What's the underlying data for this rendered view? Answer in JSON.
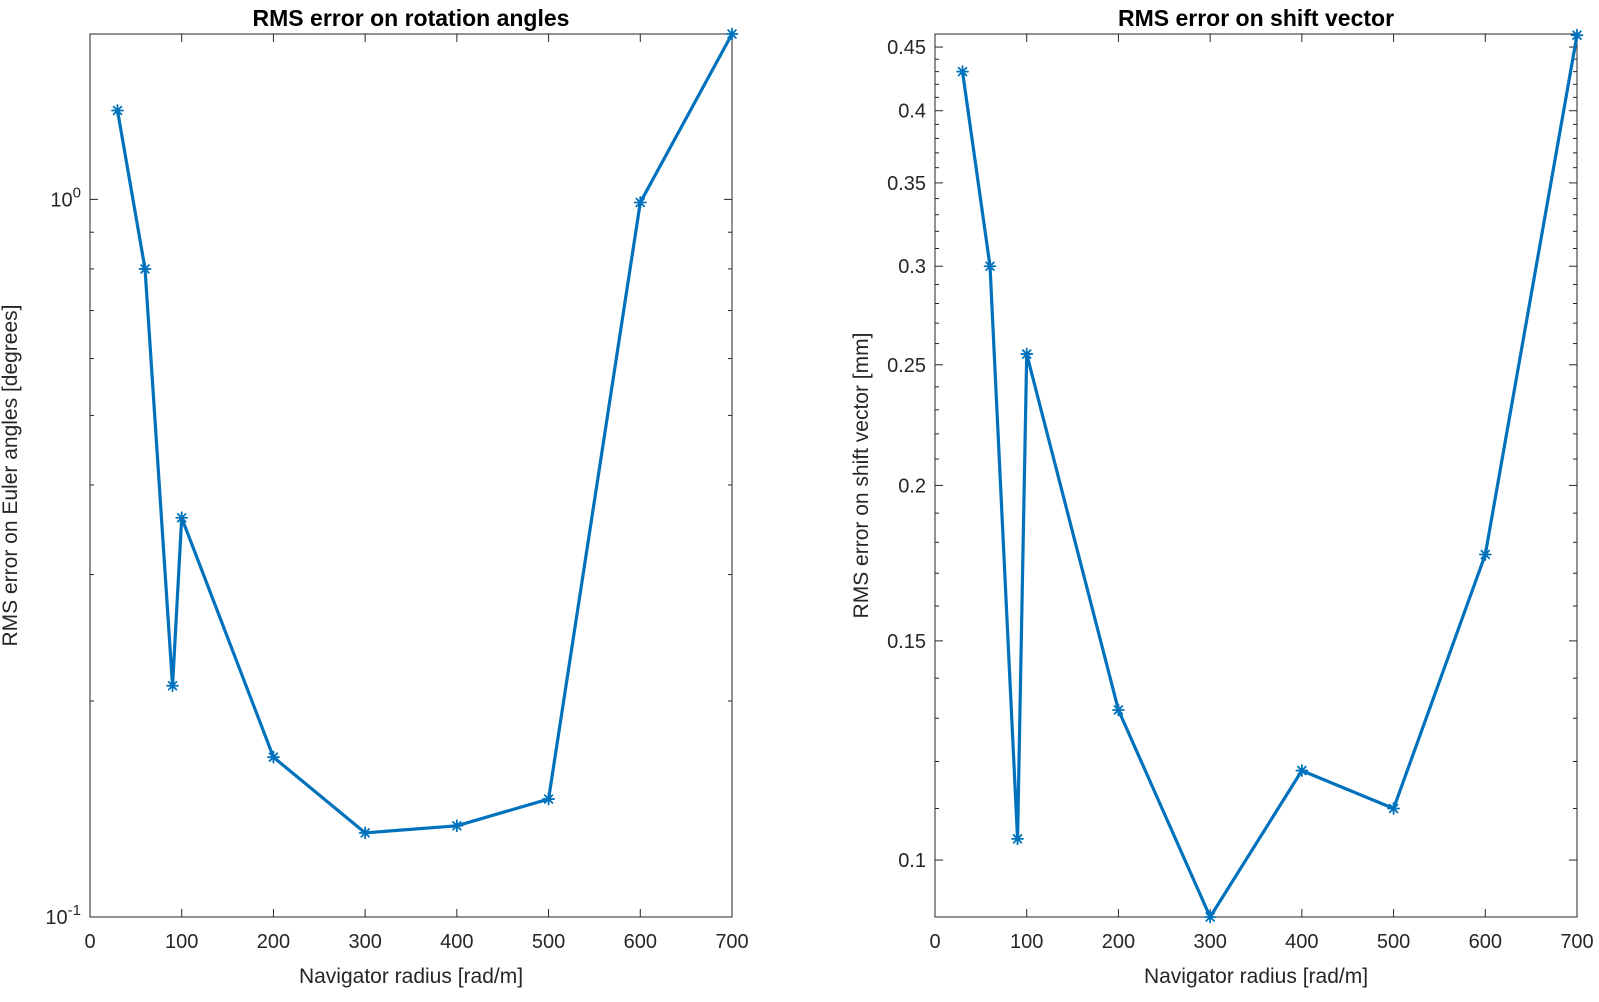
{
  "colors": {
    "line": "#0072BD",
    "axis": "#262626",
    "title_text": "#000000",
    "background": "#ffffff"
  },
  "chart_data": [
    {
      "type": "line",
      "title": "RMS error on rotation angles",
      "xlabel": "Navigator radius [rad/m]",
      "ylabel": "RMS error on Euler angles [degrees]",
      "x": [
        30,
        60,
        90,
        100,
        200,
        300,
        400,
        500,
        600,
        700
      ],
      "y": [
        1.33,
        0.8,
        0.21,
        0.36,
        0.167,
        0.131,
        0.134,
        0.146,
        0.99,
        1.7
      ],
      "yscale": "log",
      "grid": false,
      "legend": false,
      "marker": "asterisk",
      "xlim": [
        0,
        700
      ],
      "ylim": [
        0.1,
        1.7
      ],
      "xticks": [
        0,
        100,
        200,
        300,
        400,
        500,
        600,
        700
      ],
      "yticks": [
        {
          "value": 1,
          "base": "10",
          "exp": "0"
        },
        {
          "value": 0.1,
          "base": "10",
          "exp": "-1"
        }
      ],
      "yticks_minor": [
        0.2,
        0.3,
        0.4,
        0.5,
        0.6,
        0.7,
        0.8,
        0.9
      ]
    },
    {
      "type": "line",
      "title": "RMS error on shift vector",
      "xlabel": "Navigator radius [rad/m]",
      "ylabel": "RMS error on shift vector [mm]",
      "x": [
        30,
        60,
        90,
        100,
        200,
        300,
        400,
        500,
        600,
        700
      ],
      "y": [
        0.43,
        0.3,
        0.104,
        0.255,
        0.132,
        0.09,
        0.118,
        0.11,
        0.176,
        0.46
      ],
      "yscale": "log",
      "grid": false,
      "legend": false,
      "marker": "asterisk",
      "xlim": [
        0,
        700
      ],
      "ylim": [
        0.09,
        0.461
      ],
      "xticks": [
        0,
        100,
        200,
        300,
        400,
        500,
        600,
        700
      ],
      "yticks": [
        {
          "value": 0.45,
          "label": "0.45"
        },
        {
          "value": 0.4,
          "label": "0.4"
        },
        {
          "value": 0.35,
          "label": "0.35"
        },
        {
          "value": 0.3,
          "label": "0.3"
        },
        {
          "value": 0.25,
          "label": "0.25"
        },
        {
          "value": 0.2,
          "label": "0.2"
        },
        {
          "value": 0.15,
          "label": "0.15"
        },
        {
          "value": 0.1,
          "label": "0.1"
        }
      ],
      "yticks_minor": [
        0.11,
        0.12,
        0.13,
        0.14,
        0.16,
        0.17,
        0.18,
        0.19,
        0.21,
        0.22,
        0.23,
        0.24,
        0.26,
        0.27,
        0.28,
        0.29,
        0.31,
        0.32,
        0.33,
        0.34,
        0.36,
        0.37,
        0.38,
        0.39,
        0.41,
        0.42,
        0.43,
        0.44
      ]
    }
  ]
}
